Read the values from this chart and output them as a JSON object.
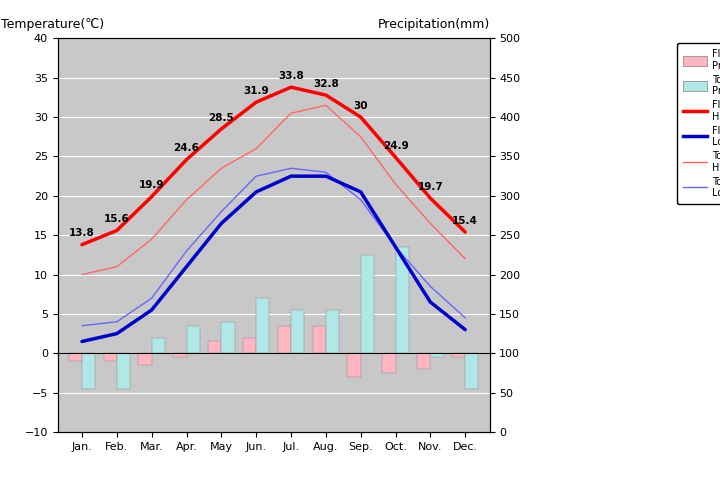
{
  "months": [
    "Jan.",
    "Feb.",
    "Mar.",
    "Apr.",
    "May",
    "Jun.",
    "Jul.",
    "Aug.",
    "Sep.",
    "Oct.",
    "Nov.",
    "Dec."
  ],
  "florence_high": [
    13.8,
    15.6,
    19.9,
    24.6,
    28.5,
    31.9,
    33.8,
    32.8,
    30.0,
    24.9,
    19.7,
    15.4
  ],
  "florence_low": [
    1.5,
    2.5,
    5.5,
    11.0,
    16.5,
    20.5,
    22.5,
    22.5,
    20.5,
    13.5,
    6.5,
    3.0
  ],
  "tokyo_high": [
    10.0,
    11.0,
    14.5,
    19.5,
    23.5,
    26.0,
    30.5,
    31.5,
    27.5,
    21.5,
    16.5,
    12.0
  ],
  "tokyo_low": [
    3.5,
    4.0,
    7.0,
    13.0,
    18.0,
    22.5,
    23.5,
    23.0,
    19.5,
    13.5,
    8.5,
    4.5
  ],
  "florence_prcp_temp": [
    -1.0,
    -1.0,
    -1.5,
    -0.5,
    1.5,
    2.0,
    3.5,
    3.5,
    -3.0,
    -2.5,
    -2.0,
    -0.5
  ],
  "tokyo_prcp_temp": [
    -4.5,
    -4.5,
    2.0,
    3.5,
    4.0,
    7.0,
    5.5,
    5.5,
    12.5,
    13.5,
    -0.5,
    -4.5
  ],
  "florence_high_labels": [
    "13.8",
    "15.6",
    "19.9",
    "24.6",
    "28.5",
    "31.9",
    "33.8",
    "32.8",
    "30",
    "24.9",
    "19.7",
    "15.4"
  ],
  "title_left": "Temperature(℃)",
  "title_right": "Precipitation(mm)",
  "bg_color": "#c8c8c8",
  "florence_high_color": "#ff0000",
  "florence_low_color": "#0000cc",
  "tokyo_high_color": "#ff6666",
  "tokyo_low_color": "#6666ff",
  "florence_prcp_color": "#ffb6c1",
  "tokyo_prcp_color": "#b0e8e8",
  "ylim_temp": [
    -10,
    40
  ],
  "ylim_prcp": [
    0,
    500
  ],
  "bar_width": 0.38,
  "temp_yticks": [
    -10,
    -5,
    0,
    5,
    10,
    15,
    20,
    25,
    30,
    35,
    40
  ],
  "prcp_yticks": [
    0,
    50,
    100,
    150,
    200,
    250,
    300,
    350,
    400,
    450,
    500
  ]
}
